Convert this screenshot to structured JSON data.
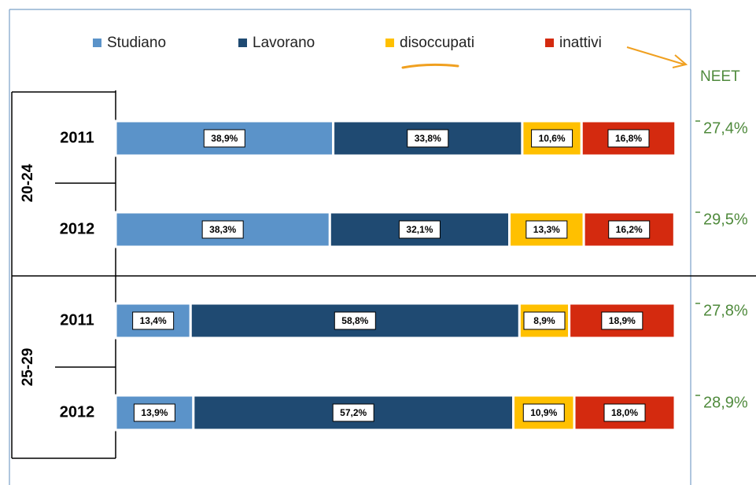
{
  "chart_data": {
    "type": "stacked-bar-horizontal",
    "groups": [
      {
        "name": "20-24",
        "categories": [
          "2011",
          "2012"
        ]
      },
      {
        "name": "25-29",
        "categories": [
          "2011",
          "2012"
        ]
      }
    ],
    "xlim": [
      0,
      100
    ],
    "series": [
      {
        "name": "Studiano",
        "color": "#5b93c9",
        "values": [
          38.9,
          38.3,
          13.4,
          13.9
        ],
        "value_labels": [
          "38,9%",
          "38,3%",
          "13,4%",
          "13,9%"
        ]
      },
      {
        "name": "Lavorano",
        "color": "#1f4a72",
        "values": [
          33.8,
          32.1,
          58.8,
          57.2
        ],
        "value_labels": [
          "33,8%",
          "32,1%",
          "58,8%",
          "57,2%"
        ]
      },
      {
        "name": "disoccupati",
        "color": "#ffc000",
        "values": [
          10.6,
          13.3,
          8.9,
          10.9
        ],
        "value_labels": [
          "10,6%",
          "13,3%",
          "8,9%",
          "10,9%"
        ]
      },
      {
        "name": "inattivi",
        "color": "#d42a0f",
        "values": [
          16.8,
          16.2,
          18.9,
          18.0
        ],
        "value_labels": [
          "16,8%",
          "16,2%",
          "18,9%",
          "18,0%"
        ]
      }
    ],
    "neet": {
      "label": "NEET",
      "values": [
        27.4,
        29.5,
        27.8,
        28.9
      ],
      "value_labels": [
        "27,4%",
        "29,5%",
        "27,8%",
        "28,9%"
      ]
    }
  }
}
